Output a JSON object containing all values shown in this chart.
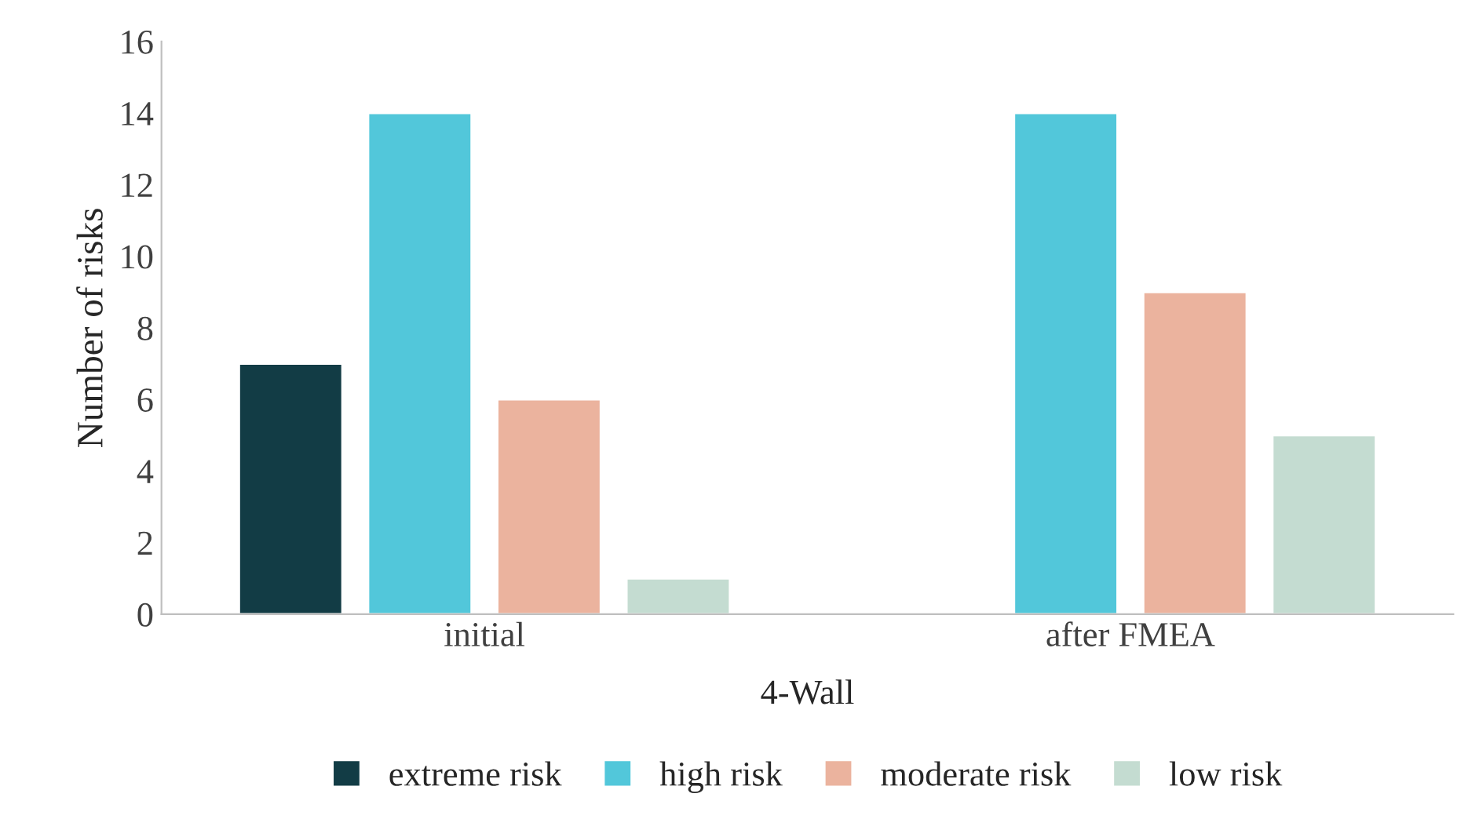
{
  "chart_data": {
    "type": "bar",
    "xlabel": "4-Wall",
    "ylabel": "Number of risks",
    "categories": [
      "initial",
      "after FMEA"
    ],
    "series": [
      {
        "name": "extreme risk",
        "color": "#123c45",
        "values": [
          7,
          null
        ]
      },
      {
        "name": "high risk",
        "color": "#52c7da",
        "values": [
          14,
          14
        ]
      },
      {
        "name": "moderate risk",
        "color": "#ebb39e",
        "values": [
          6,
          9
        ]
      },
      {
        "name": "low risk",
        "color": "#c4dcd1",
        "values": [
          1,
          5
        ]
      }
    ],
    "ylim": [
      0,
      16
    ],
    "yticks": [
      0,
      2,
      4,
      6,
      8,
      10,
      12,
      14,
      16
    ],
    "grid": false,
    "legend": "bottom"
  }
}
